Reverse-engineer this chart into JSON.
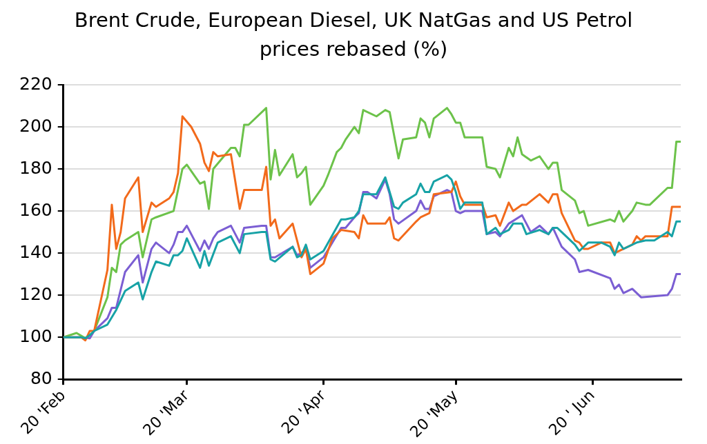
{
  "chart_data": {
    "type": "line",
    "title": "Brent Crude, European Diesel, UK NatGas and US Petrol prices rebased (%)",
    "xlim": [
      "--02-20",
      "--07-10"
    ],
    "xticks": [
      {
        "value": "--02-20",
        "label": "20 'Feb"
      },
      {
        "value": "--03-20",
        "label": "20 'Mar"
      },
      {
        "value": "--04-20",
        "label": "20 'Apr"
      },
      {
        "value": "--05-20",
        "label": "20 'May"
      },
      {
        "value": "--06-20",
        "label": "20 ' Jun"
      }
    ],
    "ylim": [
      80,
      220
    ],
    "yticks": [
      80,
      100,
      120,
      140,
      160,
      180,
      200,
      220
    ],
    "grid": "y",
    "legend": false,
    "marker": "none",
    "line_style": "solid",
    "series": [
      {
        "color": "#7b5ed3",
        "x": [
          "--02-20",
          "--02-24",
          "--02-26",
          "--02-27",
          "--03-02",
          "--03-03",
          "--03-04",
          "--03-06",
          "--03-09",
          "--03-10",
          "--03-12",
          "--03-13",
          "--03-16",
          "--03-17",
          "--03-18",
          "--03-19",
          "--03-20",
          "--03-23",
          "--03-24",
          "--03-25",
          "--03-26",
          "--03-27",
          "--03-30",
          "--04-01",
          "--04-02",
          "--04-06",
          "--04-07",
          "--04-08",
          "--04-09",
          "--04-13",
          "--04-14",
          "--04-15",
          "--04-16",
          "--04-17",
          "--04-20",
          "--04-24",
          "--04-25",
          "--04-27",
          "--04-28",
          "--04-29",
          "--04-30",
          "--05-02",
          "--05-04",
          "--05-05",
          "--05-06",
          "--05-07",
          "--05-11",
          "--05-12",
          "--05-13",
          "--05-14",
          "--05-15",
          "--05-18",
          "--05-19",
          "--05-20",
          "--05-21",
          "--05-22",
          "--05-24",
          "--05-26",
          "--05-27",
          "--05-29",
          "--05-30",
          "--06-01",
          "--06-04",
          "--06-06",
          "--06-08",
          "--06-10",
          "--06-11",
          "--06-13",
          "--06-16",
          "--06-17",
          "--06-19",
          "--06-24",
          "--06-25",
          "--06-26",
          "--06-27",
          "--06-29",
          "--07-01",
          "--07-07",
          "--07-08",
          "--07-09",
          "--07-10"
        ],
        "values": [
          100,
          100,
          99.5,
          103,
          109,
          114,
          114,
          131,
          139,
          126,
          142,
          145,
          140,
          144,
          150,
          150,
          153,
          141,
          146,
          142,
          147,
          150,
          153,
          145,
          152,
          153,
          153,
          138,
          138,
          143,
          139,
          140,
          142,
          133,
          138,
          152,
          152,
          157,
          159,
          169,
          169,
          166,
          175,
          168,
          156,
          154,
          160,
          165,
          161,
          161,
          167,
          170,
          169,
          160,
          159,
          160,
          160,
          160,
          149,
          150,
          148,
          154,
          158,
          150,
          153,
          149,
          152,
          143,
          137,
          131,
          132,
          128,
          123,
          125,
          121,
          123,
          119,
          120,
          123,
          130,
          130
        ]
      },
      {
        "color": "#6cc24a",
        "x": [
          "--02-20",
          "--02-23",
          "--02-25",
          "--02-26",
          "--02-27",
          "--03-02",
          "--03-03",
          "--03-04",
          "--03-05",
          "--03-06",
          "--03-09",
          "--03-10",
          "--03-12",
          "--03-13",
          "--03-17",
          "--03-19",
          "--03-20",
          "--03-23",
          "--03-24",
          "--03-25",
          "--03-26",
          "--03-28",
          "--03-30",
          "--03-31",
          "--04-01",
          "--04-02",
          "--04-03",
          "--04-07",
          "--04-08",
          "--04-09",
          "--04-10",
          "--04-13",
          "--04-14",
          "--04-15",
          "--04-16",
          "--04-17",
          "--04-20",
          "--04-21",
          "--04-23",
          "--04-24",
          "--04-25",
          "--04-27",
          "--04-28",
          "--04-29",
          "--05-02",
          "--05-04",
          "--05-05",
          "--05-07",
          "--05-08",
          "--05-11",
          "--05-12",
          "--05-13",
          "--05-14",
          "--05-15",
          "--05-18",
          "--05-19",
          "--05-20",
          "--05-21",
          "--05-22",
          "--05-24",
          "--05-26",
          "--05-27",
          "--05-29",
          "--05-30",
          "--06-01",
          "--06-02",
          "--06-03",
          "--06-04",
          "--06-06",
          "--06-08",
          "--06-10",
          "--06-11",
          "--06-12",
          "--06-13",
          "--06-16",
          "--06-17",
          "--06-18",
          "--06-19",
          "--06-24",
          "--06-25",
          "--06-26",
          "--06-27",
          "--06-29",
          "--06-30",
          "--07-02",
          "--07-03",
          "--07-07",
          "--07-08",
          "--07-09",
          "--07-10"
        ],
        "values": [
          100,
          102,
          99.5,
          101,
          103,
          119,
          133,
          131,
          144,
          146,
          150,
          138,
          156,
          157,
          160,
          180,
          182,
          173,
          174,
          161,
          180,
          185,
          190,
          190,
          186,
          201,
          201,
          209,
          175,
          189,
          177,
          187,
          176,
          178,
          181,
          163,
          172,
          177,
          188,
          190,
          194,
          200,
          197,
          208,
          205,
          208,
          207,
          185,
          194,
          195,
          204,
          202,
          195,
          204,
          209,
          206,
          202,
          202,
          195,
          195,
          195,
          181,
          180,
          176,
          190,
          186,
          195,
          187,
          184,
          186,
          180,
          183,
          183,
          170,
          165,
          159,
          160,
          153,
          156,
          155,
          160,
          155,
          160,
          164,
          163,
          163,
          171,
          171,
          193,
          193
        ]
      },
      {
        "color": "#f26a1b",
        "x": [
          "--02-20",
          "--02-24",
          "--02-25",
          "--02-26",
          "--02-27",
          "--03-02",
          "--03-03",
          "--03-04",
          "--03-05",
          "--03-06",
          "--03-09",
          "--03-10",
          "--03-12",
          "--03-13",
          "--03-16",
          "--03-17",
          "--03-18",
          "--03-19",
          "--03-21",
          "--03-23",
          "--03-24",
          "--03-25",
          "--03-26",
          "--03-27",
          "--03-30",
          "--04-01",
          "--04-02",
          "--04-06",
          "--04-07",
          "--04-08",
          "--04-09",
          "--04-10",
          "--04-13",
          "--04-15",
          "--04-16",
          "--04-17",
          "--04-20",
          "--04-22",
          "--04-24",
          "--04-27",
          "--04-28",
          "--04-29",
          "--04-30",
          "--05-04",
          "--05-05",
          "--05-06",
          "--05-07",
          "--05-11",
          "--05-12",
          "--05-14",
          "--05-15",
          "--05-19",
          "--05-20",
          "--05-21",
          "--05-22",
          "--05-24",
          "--05-26",
          "--05-27",
          "--05-29",
          "--05-30",
          "--06-01",
          "--06-02",
          "--06-04",
          "--06-05",
          "--06-08",
          "--06-10",
          "--06-11",
          "--06-12",
          "--06-13",
          "--06-16",
          "--06-17",
          "--06-18",
          "--06-19",
          "--06-22",
          "--06-24",
          "--06-25",
          "--06-29",
          "--06-30",
          "--07-01",
          "--07-02",
          "--07-07",
          "--07-08",
          "--07-10"
        ],
        "values": [
          100,
          100,
          98.5,
          103,
          103,
          132,
          163,
          142,
          150,
          166,
          176,
          150,
          164,
          162,
          166,
          169,
          178,
          205,
          200,
          192,
          183,
          179,
          188,
          186,
          187,
          161,
          170,
          170,
          181,
          153,
          156,
          147,
          154,
          138,
          142,
          130,
          135,
          147,
          151,
          150,
          147,
          158,
          154,
          154,
          157,
          147,
          146,
          155,
          157,
          159,
          168,
          169,
          174,
          167,
          163,
          163,
          163,
          157,
          158,
          153,
          164,
          160,
          163,
          163,
          168,
          164,
          168,
          168,
          159,
          146,
          145,
          142,
          142,
          145,
          145,
          140,
          144,
          148,
          146,
          148,
          148,
          162,
          162
        ]
      },
      {
        "color": "#17a2a6",
        "x": [
          "--02-20",
          "--02-24",
          "--02-25",
          "--02-26",
          "--02-27",
          "--03-02",
          "--03-04",
          "--03-06",
          "--03-09",
          "--03-10",
          "--03-12",
          "--03-13",
          "--03-16",
          "--03-17",
          "--03-18",
          "--03-19",
          "--03-20",
          "--03-23",
          "--03-24",
          "--03-25",
          "--03-27",
          "--03-30",
          "--04-01",
          "--04-02",
          "--04-06",
          "--04-07",
          "--04-08",
          "--04-09",
          "--04-13",
          "--04-14",
          "--04-15",
          "--04-16",
          "--04-17",
          "--04-20",
          "--04-24",
          "--04-25",
          "--04-27",
          "--04-28",
          "--04-29",
          "--05-02",
          "--05-04",
          "--05-06",
          "--05-07",
          "--05-08",
          "--05-11",
          "--05-12",
          "--05-13",
          "--05-14",
          "--05-15",
          "--05-18",
          "--05-19",
          "--05-20",
          "--05-21",
          "--05-22",
          "--05-24",
          "--05-26",
          "--05-27",
          "--05-29",
          "--05-30",
          "--06-01",
          "--06-02",
          "--06-04",
          "--06-05",
          "--06-08",
          "--06-10",
          "--06-11",
          "--06-12",
          "--06-13",
          "--06-16",
          "--06-17",
          "--06-19",
          "--06-22",
          "--06-24",
          "--06-25",
          "--06-26",
          "--06-27",
          "--06-30",
          "--07-02",
          "--07-04",
          "--07-07",
          "--07-08",
          "--07-09",
          "--07-10"
        ],
        "values": [
          100,
          100,
          99.5,
          101,
          103,
          106,
          113,
          122,
          126,
          118,
          131,
          136,
          134,
          139,
          139,
          141,
          147,
          133,
          141,
          134,
          145,
          148,
          140,
          149,
          150,
          150,
          137,
          136,
          143,
          138,
          139,
          144,
          137,
          141,
          156,
          156,
          157,
          160,
          168,
          168,
          176,
          162,
          161,
          164,
          168,
          173,
          169,
          169,
          174,
          177,
          175,
          169,
          161,
          164,
          164,
          164,
          149,
          152,
          149,
          151,
          154,
          154,
          149,
          151,
          149,
          152,
          152,
          150,
          144,
          141,
          145,
          145,
          143,
          139,
          145,
          142,
          145,
          146,
          146,
          150,
          148,
          155,
          155
        ]
      }
    ]
  }
}
